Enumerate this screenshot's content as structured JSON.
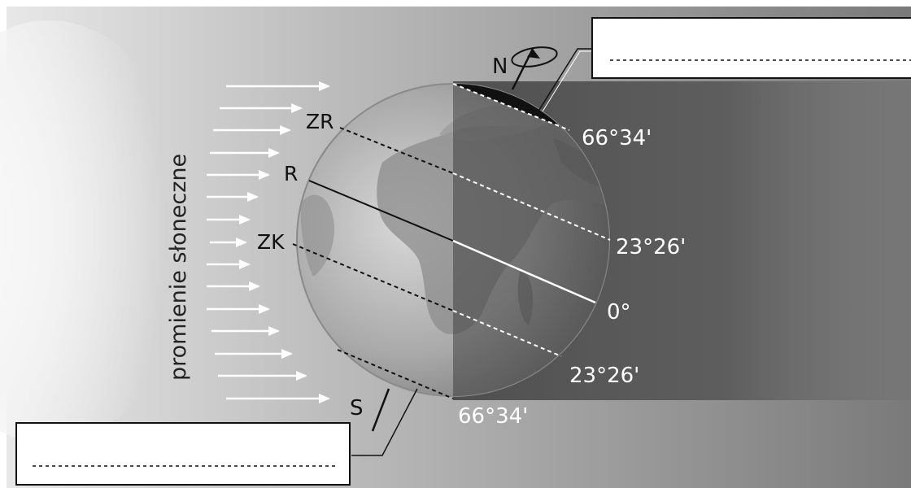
{
  "rays_label": "promienie słoneczne",
  "poles": {
    "north": "N",
    "south": "S"
  },
  "lines_left": {
    "arctic_circle": "ZR",
    "tropic_cancer": "R",
    "tropic_capricorn": "ZK"
  },
  "latitudes": {
    "arctic": "66°34'",
    "tropic_north": "23°26'",
    "equator": "0°",
    "tropic_south": "23°26'",
    "antarctic": "66°34'"
  },
  "answer_boxes": [
    {
      "value": ""
    },
    {
      "value": ""
    }
  ],
  "colors": {
    "sun_glow": "#f7f7f7",
    "background": "#9a9a9a",
    "night_shadow": "#4a4a4a",
    "ray_arrow": "#ffffff",
    "label_light": "#ffffff",
    "label_dark": "#111111"
  }
}
